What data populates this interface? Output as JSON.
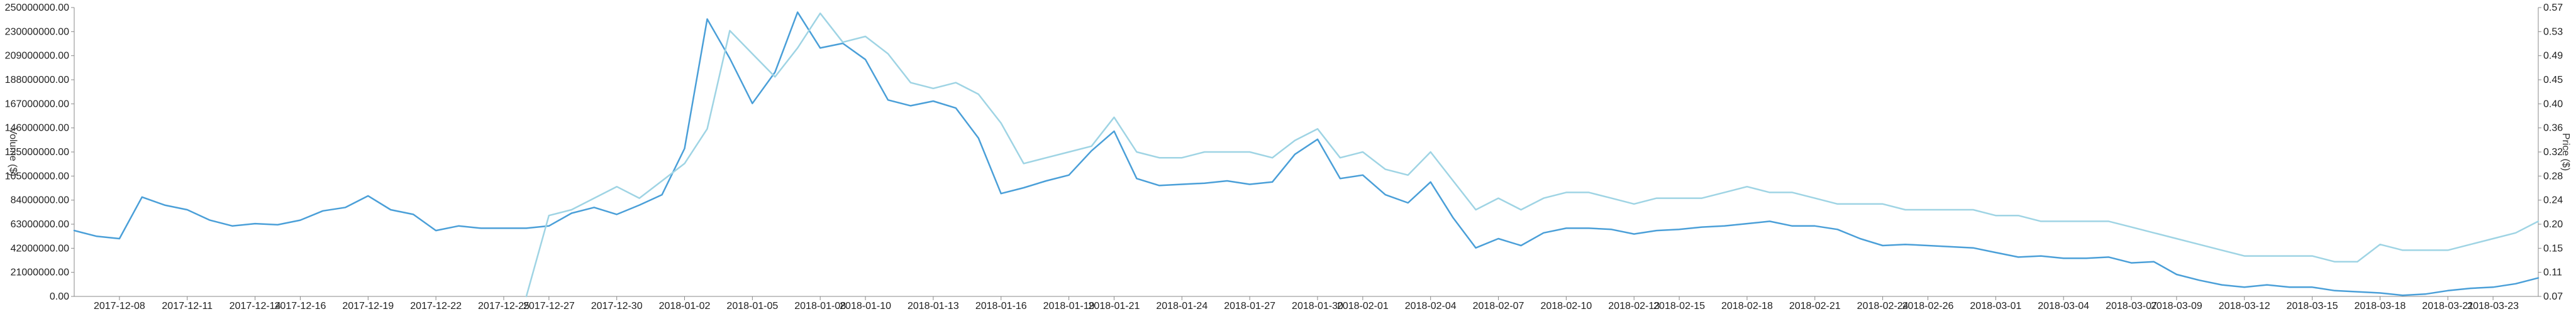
{
  "chart_data": {
    "type": "line",
    "title": "",
    "xlabel": "",
    "ylabel_left": "Volume ($)",
    "ylabel_right": "Price ($)",
    "x_tick_labels": [
      "2017-12-08",
      "2017-12-11",
      "2017-12-14",
      "2017-12-16",
      "2017-12-19",
      "2017-12-22",
      "2017-12-25",
      "2017-12-27",
      "2017-12-30",
      "2018-01-02",
      "2018-01-05",
      "2018-01-08",
      "2018-01-10",
      "2018-01-13",
      "2018-01-16",
      "2018-01-19",
      "2018-01-21",
      "2018-01-24",
      "2018-01-27",
      "2018-01-30",
      "2018-02-01",
      "2018-02-04",
      "2018-02-07",
      "2018-02-10",
      "2018-02-13",
      "2018-02-15",
      "2018-02-18",
      "2018-02-21",
      "2018-02-24",
      "2018-02-26",
      "2018-03-01",
      "2018-03-04",
      "2018-03-07",
      "2018-03-09",
      "2018-03-12",
      "2018-03-15",
      "2018-03-18",
      "2018-03-21",
      "2018-03-23"
    ],
    "y_left_ticks": [
      "0.00",
      "21000000.00",
      "42000000.00",
      "63000000.00",
      "84000000.00",
      "105000000.00",
      "125000000.00",
      "146000000.00",
      "167000000.00",
      "188000000.00",
      "209000000.00",
      "230000000.00",
      "250000000.00"
    ],
    "y_right_ticks": [
      "0.07",
      "0.11",
      "0.15",
      "0.20",
      "0.24",
      "0.28",
      "0.32",
      "0.36",
      "0.40",
      "0.45",
      "0.49",
      "0.53",
      "0.57"
    ],
    "y_left_range": [
      0,
      250000000
    ],
    "y_right_range": [
      0.07,
      0.57
    ],
    "grid": false,
    "legend": "none",
    "series": [
      {
        "axis": "left",
        "color": "#4a9fd8",
        "x": [
          "2017-12-06",
          "2017-12-07",
          "2017-12-08",
          "2017-12-09",
          "2017-12-10",
          "2017-12-11",
          "2017-12-12",
          "2017-12-13",
          "2017-12-14",
          "2017-12-15",
          "2017-12-16",
          "2017-12-17",
          "2017-12-18",
          "2017-12-19",
          "2017-12-20",
          "2017-12-21",
          "2017-12-22",
          "2017-12-23",
          "2017-12-24",
          "2017-12-25",
          "2017-12-26",
          "2017-12-27",
          "2017-12-28",
          "2017-12-29",
          "2017-12-30",
          "2017-12-31",
          "2018-01-01",
          "2018-01-02",
          "2018-01-03",
          "2018-01-04",
          "2018-01-05",
          "2018-01-06",
          "2018-01-07",
          "2018-01-08",
          "2018-01-09",
          "2018-01-10",
          "2018-01-11",
          "2018-01-12",
          "2018-01-13",
          "2018-01-14",
          "2018-01-15",
          "2018-01-16",
          "2018-01-17",
          "2018-01-18",
          "2018-01-19",
          "2018-01-20",
          "2018-01-21",
          "2018-01-22",
          "2018-01-23",
          "2018-01-24",
          "2018-01-25",
          "2018-01-26",
          "2018-01-27",
          "2018-01-28",
          "2018-01-29",
          "2018-01-30",
          "2018-01-31",
          "2018-02-01",
          "2018-02-02",
          "2018-02-03",
          "2018-02-04",
          "2018-02-05",
          "2018-02-06",
          "2018-02-07",
          "2018-02-08",
          "2018-02-09",
          "2018-02-10",
          "2018-02-11",
          "2018-02-12",
          "2018-02-13",
          "2018-02-14",
          "2018-02-15",
          "2018-02-16",
          "2018-02-17",
          "2018-02-18",
          "2018-02-19",
          "2018-02-20",
          "2018-02-21",
          "2018-02-22",
          "2018-02-23",
          "2018-02-24",
          "2018-02-25",
          "2018-02-26",
          "2018-02-27",
          "2018-02-28",
          "2018-03-01",
          "2018-03-02",
          "2018-03-03",
          "2018-03-04",
          "2018-03-05",
          "2018-03-06",
          "2018-03-07",
          "2018-03-08",
          "2018-03-09",
          "2018-03-10",
          "2018-03-11",
          "2018-03-12",
          "2018-03-13",
          "2018-03-14",
          "2018-03-15",
          "2018-03-16",
          "2018-03-17",
          "2018-03-18",
          "2018-03-19",
          "2018-03-20",
          "2018-03-21",
          "2018-03-22",
          "2018-03-23",
          "2018-03-24",
          "2018-03-25"
        ],
        "values": [
          57000000,
          52000000,
          50000000,
          86000000,
          79000000,
          75000000,
          66000000,
          61000000,
          63000000,
          62000000,
          66000000,
          74000000,
          77000000,
          87000000,
          75000000,
          71000000,
          57000000,
          61000000,
          59000000,
          59000000,
          59000000,
          61000000,
          72000000,
          77000000,
          71000000,
          79000000,
          88000000,
          128000000,
          240000000,
          206000000,
          167000000,
          194000000,
          246000000,
          215000000,
          219000000,
          205000000,
          170000000,
          165000000,
          169000000,
          163000000,
          137000000,
          89000000,
          94000000,
          100000000,
          105000000,
          126000000,
          143000000,
          102000000,
          96000000,
          97000000,
          98000000,
          100000000,
          97000000,
          99000000,
          123000000,
          136000000,
          102000000,
          105000000,
          88000000,
          81000000,
          99000000,
          68000000,
          42000000,
          50000000,
          44000000,
          55000000,
          59000000,
          59000000,
          58000000,
          54000000,
          57000000,
          58000000,
          60000000,
          61000000,
          63000000,
          65000000,
          61000000,
          61000000,
          58000000,
          50000000,
          44000000,
          45000000,
          44000000,
          43000000,
          42000000,
          38000000,
          34000000,
          35000000,
          33000000,
          33000000,
          34000000,
          29000000,
          30000000,
          19000000,
          14000000,
          10000000,
          8000000,
          10000000,
          8000000,
          8000000,
          5000000,
          4000000,
          3000000,
          1000000,
          2000000,
          5000000,
          7000000,
          8000000,
          11000000,
          16000000
        ]
      },
      {
        "axis": "right",
        "color": "#9fd4e4",
        "x": [
          "2017-12-26",
          "2017-12-27",
          "2017-12-28",
          "2017-12-29",
          "2017-12-30",
          "2017-12-31",
          "2018-01-01",
          "2018-01-02",
          "2018-01-03",
          "2018-01-04",
          "2018-01-05",
          "2018-01-06",
          "2018-01-07",
          "2018-01-08",
          "2018-01-09",
          "2018-01-10",
          "2018-01-11",
          "2018-01-12",
          "2018-01-13",
          "2018-01-14",
          "2018-01-15",
          "2018-01-16",
          "2018-01-17",
          "2018-01-18",
          "2018-01-19",
          "2018-01-20",
          "2018-01-21",
          "2018-01-22",
          "2018-01-23",
          "2018-01-24",
          "2018-01-25",
          "2018-01-26",
          "2018-01-27",
          "2018-01-28",
          "2018-01-29",
          "2018-01-30",
          "2018-01-31",
          "2018-02-01",
          "2018-02-02",
          "2018-02-03",
          "2018-02-04",
          "2018-02-05",
          "2018-02-06",
          "2018-02-07",
          "2018-02-08",
          "2018-02-09",
          "2018-02-10",
          "2018-02-11",
          "2018-02-12",
          "2018-02-13",
          "2018-02-14",
          "2018-02-15",
          "2018-02-16",
          "2018-02-17",
          "2018-02-18",
          "2018-02-19",
          "2018-02-20",
          "2018-02-21",
          "2018-02-22",
          "2018-02-23",
          "2018-02-24",
          "2018-02-25",
          "2018-02-26",
          "2018-02-27",
          "2018-02-28",
          "2018-03-01",
          "2018-03-02",
          "2018-03-03",
          "2018-03-04",
          "2018-03-05",
          "2018-03-06",
          "2018-03-07",
          "2018-03-08",
          "2018-03-09",
          "2018-03-10",
          "2018-03-11",
          "2018-03-12",
          "2018-03-13",
          "2018-03-14",
          "2018-03-15",
          "2018-03-16",
          "2018-03-17",
          "2018-03-18",
          "2018-03-19",
          "2018-03-20",
          "2018-03-21",
          "2018-03-22",
          "2018-03-23",
          "2018-03-24",
          "2018-03-25"
        ],
        "values": [
          0.07,
          0.21,
          0.22,
          0.24,
          0.26,
          0.24,
          0.27,
          0.3,
          0.36,
          0.53,
          0.49,
          0.45,
          0.5,
          0.56,
          0.51,
          0.52,
          0.49,
          0.44,
          0.43,
          0.44,
          0.42,
          0.37,
          0.3,
          0.31,
          0.32,
          0.33,
          0.38,
          0.32,
          0.31,
          0.31,
          0.32,
          0.32,
          0.32,
          0.31,
          0.34,
          0.36,
          0.31,
          0.32,
          0.29,
          0.28,
          0.32,
          0.27,
          0.22,
          0.24,
          0.22,
          0.24,
          0.25,
          0.25,
          0.24,
          0.23,
          0.24,
          0.24,
          0.24,
          0.25,
          0.26,
          0.25,
          0.25,
          0.24,
          0.23,
          0.23,
          0.23,
          0.22,
          0.22,
          0.22,
          0.22,
          0.21,
          0.21,
          0.2,
          0.2,
          0.2,
          0.2,
          0.19,
          0.18,
          0.17,
          0.16,
          0.15,
          0.14,
          0.14,
          0.14,
          0.14,
          0.13,
          0.13,
          0.16,
          0.15,
          0.15,
          0.15,
          0.16,
          0.17,
          0.18,
          0.2
        ]
      }
    ]
  }
}
